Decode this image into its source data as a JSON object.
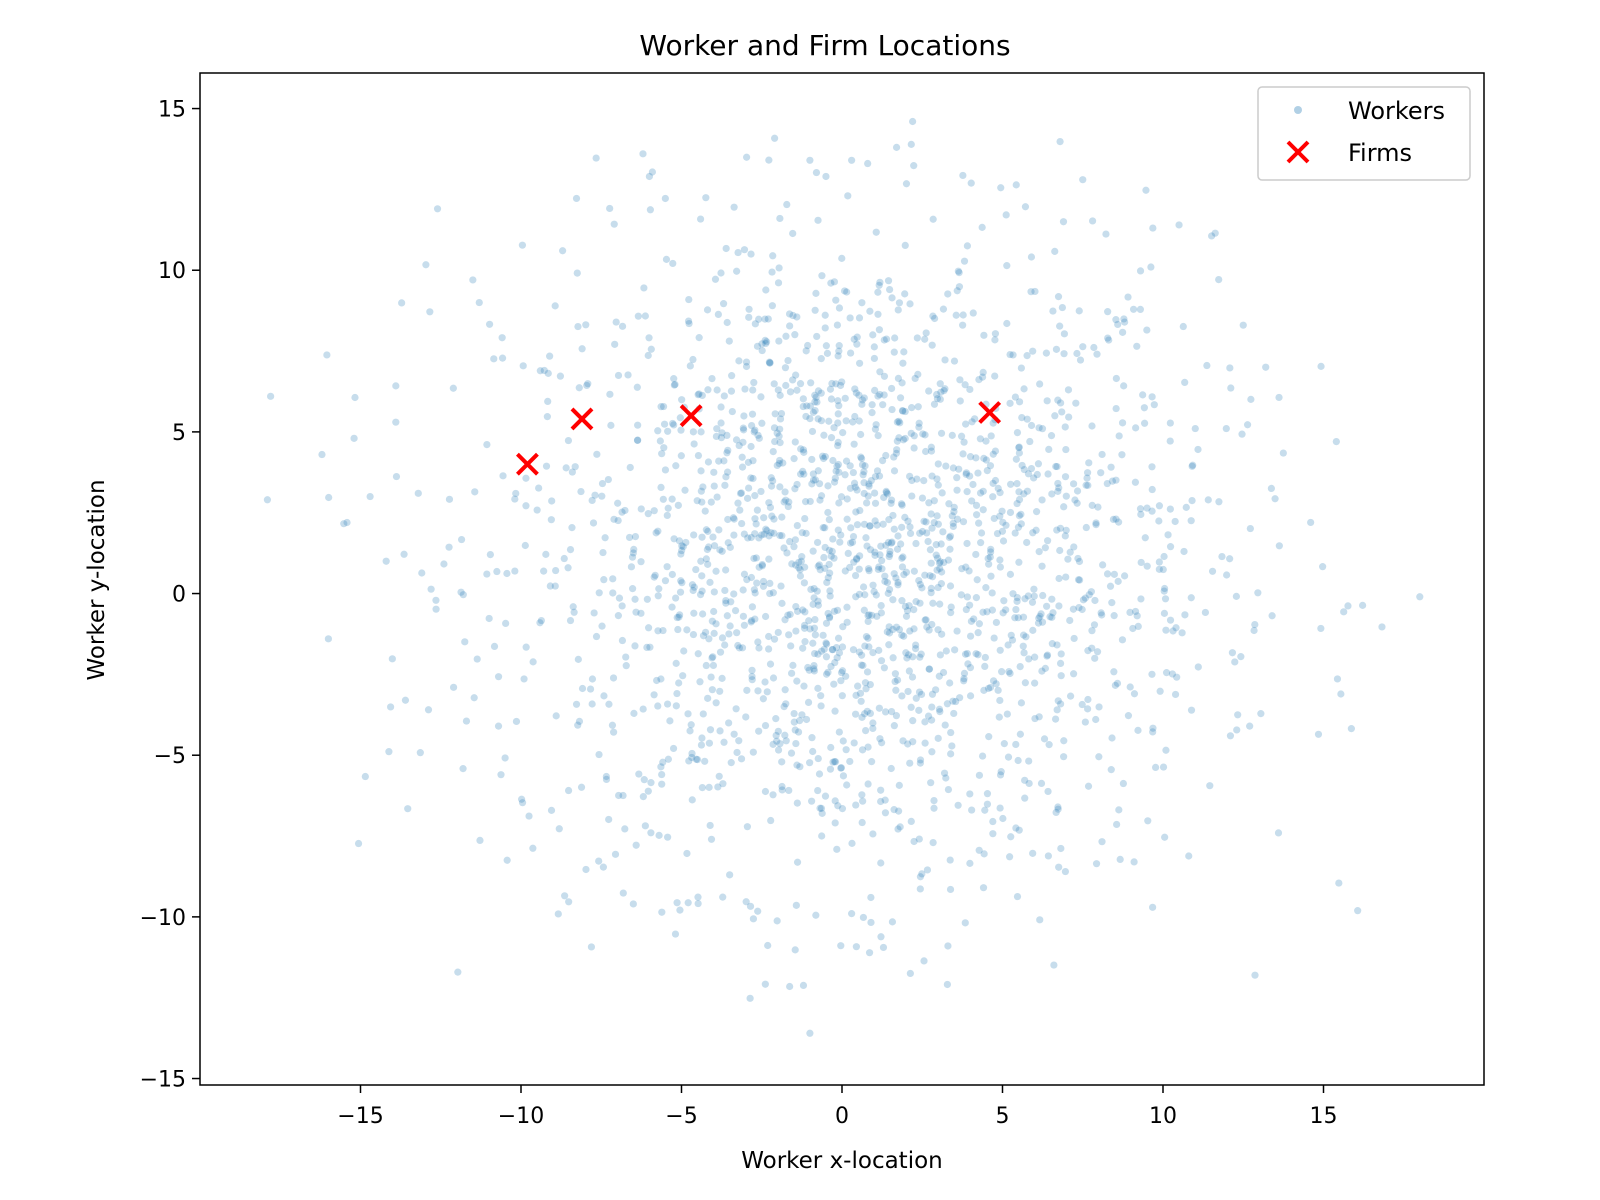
{
  "chart_data": {
    "type": "scatter",
    "title": "Worker and Firm Locations",
    "xlabel": "Worker x-location",
    "ylabel": "Worker y-location",
    "xlim": [
      -20,
      20
    ],
    "ylim": [
      -15.2,
      16.1
    ],
    "xticks": [
      -15,
      -10,
      -5,
      0,
      5,
      10,
      15
    ],
    "yticks": [
      -15,
      -10,
      -5,
      0,
      5,
      10,
      15
    ],
    "xtick_labels": [
      "−15",
      "−10",
      "−5",
      "0",
      "5",
      "10",
      "15"
    ],
    "ytick_labels": [
      "−15",
      "−10",
      "−5",
      "0",
      "5",
      "10",
      "15"
    ],
    "grid": false,
    "legend_position": "top-right",
    "series": [
      {
        "name": "Workers",
        "marker": "dot",
        "color": "#1f77b4",
        "alpha": 0.25,
        "approx_count": 2000,
        "distribution": {
          "center": [
            0.5,
            1.0
          ],
          "sd": [
            5.5,
            5.0
          ]
        },
        "outliers": [
          [
            -17.9,
            2.9
          ],
          [
            -17.8,
            6.1
          ],
          [
            -16.2,
            4.3
          ],
          [
            -16.0,
            -1.4
          ],
          [
            -15.2,
            4.8
          ],
          [
            -14.7,
            3.0
          ],
          [
            -14.2,
            1.0
          ],
          [
            -13.9,
            5.3
          ],
          [
            -13.6,
            -3.3
          ],
          [
            -13.2,
            3.1
          ],
          [
            -12.6,
            11.9
          ],
          [
            -12.1,
            -2.9
          ],
          [
            -11.5,
            9.7
          ],
          [
            -11.3,
            9.0
          ],
          [
            -10.7,
            -4.1
          ],
          [
            -6.5,
            -9.6
          ],
          [
            -3.5,
            -8.7
          ],
          [
            -1.0,
            -13.6
          ],
          [
            0.3,
            -9.9
          ],
          [
            0.9,
            -9.4
          ],
          [
            3.3,
            -10.9
          ],
          [
            9.1,
            -8.3
          ],
          [
            12.7,
            -4.1
          ],
          [
            14.6,
            2.2
          ],
          [
            15.4,
            4.7
          ],
          [
            18.0,
            -0.1
          ],
          [
            -6.2,
            13.6
          ],
          [
            -6.0,
            12.9
          ],
          [
            -1.0,
            13.4
          ],
          [
            0.3,
            13.4
          ],
          [
            0.8,
            13.3
          ],
          [
            2.2,
            14.6
          ],
          [
            1.7,
            13.8
          ],
          [
            -0.5,
            12.9
          ],
          [
            13.2,
            7.0
          ],
          [
            12.5,
            8.3
          ],
          [
            10.5,
            11.4
          ],
          [
            6.9,
            11.5
          ],
          [
            7.5,
            12.8
          ]
        ]
      },
      {
        "name": "Firms",
        "marker": "x",
        "color": "#ff0000",
        "points": [
          [
            -9.8,
            4.0
          ],
          [
            -8.1,
            5.4
          ],
          [
            -4.7,
            5.5
          ],
          [
            4.6,
            5.6
          ]
        ]
      }
    ]
  }
}
